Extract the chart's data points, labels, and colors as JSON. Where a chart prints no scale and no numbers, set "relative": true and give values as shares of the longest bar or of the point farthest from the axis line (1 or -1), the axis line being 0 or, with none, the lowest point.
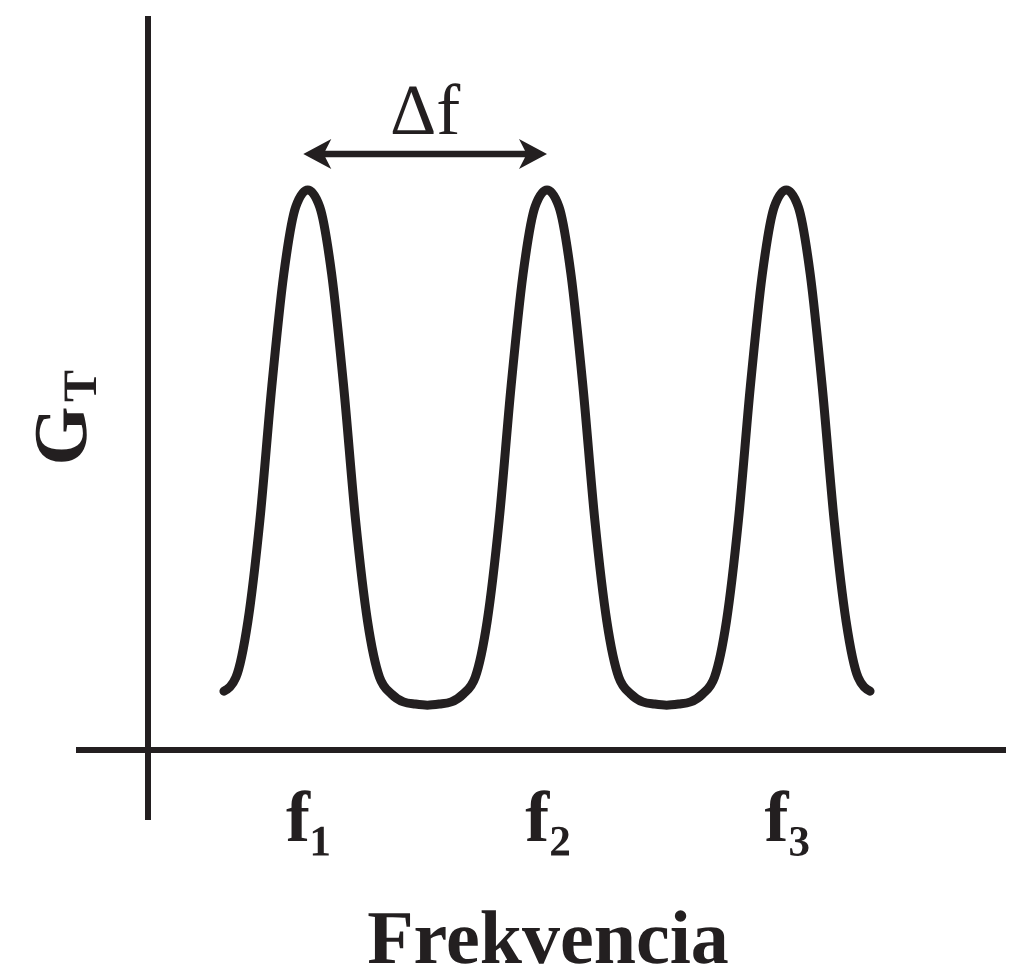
{
  "chart_data": {
    "type": "line",
    "relative": true,
    "xlabel": "Frekvencia",
    "ylabel": "G$_{T}$",
    "line_style": "solid",
    "categories": [
      null,
      null,
      null,
      null,
      null,
      null,
      null,
      "f₁",
      null,
      null,
      null,
      null,
      null,
      null,
      null,
      null,
      null,
      null,
      null,
      null,
      null,
      null,
      null,
      null,
      null,
      null,
      null,
      "f₂",
      null,
      null,
      null,
      null,
      null,
      null,
      null,
      null,
      null,
      null,
      null,
      null,
      null,
      null,
      null,
      null,
      null,
      null,
      null,
      "f₃",
      null,
      null,
      null,
      null,
      null,
      null,
      null
    ],
    "series": [
      {
        "color": "#231f20",
        "values": [
          0.105,
          0.13,
          0.23,
          0.41,
          0.65,
          0.85,
          0.97,
          1.0,
          0.97,
          0.85,
          0.65,
          0.41,
          0.23,
          0.13,
          0.1,
          0.086,
          0.082,
          0.08,
          0.082,
          0.086,
          0.1,
          0.13,
          0.23,
          0.41,
          0.65,
          0.85,
          0.97,
          1.0,
          0.97,
          0.85,
          0.65,
          0.41,
          0.23,
          0.13,
          0.1,
          0.086,
          0.082,
          0.08,
          0.082,
          0.086,
          0.1,
          0.13,
          0.23,
          0.41,
          0.65,
          0.85,
          0.97,
          1.0,
          0.97,
          0.85,
          0.65,
          0.41,
          0.23,
          0.13,
          0.105
        ]
      }
    ],
    "annotations": [
      "Δf"
    ]
  }
}
